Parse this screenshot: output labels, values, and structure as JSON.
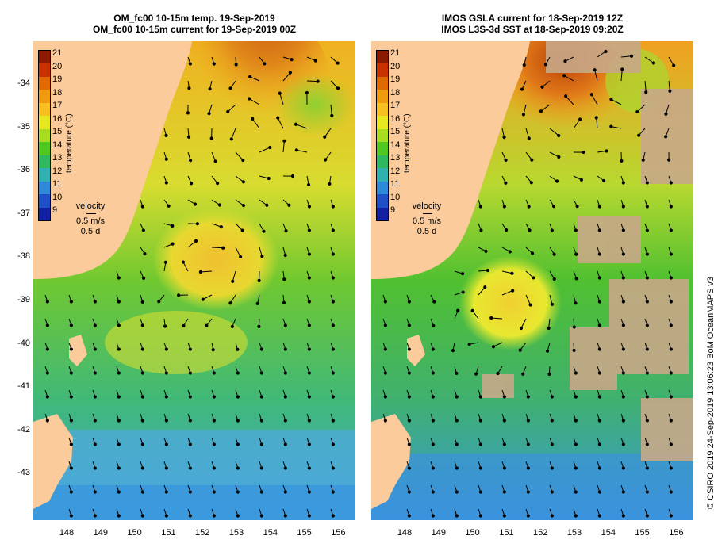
{
  "left_panel": {
    "title_line1": "OM_fc00 10-15m temp. 19-Sep-2019",
    "title_line2": "OM_fc00 10-15m current for 19-Sep-2019 00Z"
  },
  "right_panel": {
    "title_line1": "IMOS GSLA current for 18-Sep-2019 12Z",
    "title_line2": "IMOS L3S-3d SST at 18-Sep-2019 09:20Z"
  },
  "latitude_labels": [
    "-34",
    "-35",
    "-36",
    "-37",
    "-38",
    "-39",
    "-40",
    "-41",
    "-42",
    "-43"
  ],
  "longitude_labels": [
    "148",
    "149",
    "150",
    "151",
    "152",
    "153",
    "154",
    "155",
    "156"
  ],
  "colorbar": {
    "ticks": [
      "21",
      "20",
      "19",
      "18",
      "17",
      "16",
      "15",
      "14",
      "13",
      "12",
      "11",
      "10",
      "9"
    ],
    "title": "temperature (°C)",
    "colors": [
      "#8b1a00",
      "#c83200",
      "#e06a00",
      "#f09a10",
      "#f5c020",
      "#e8e820",
      "#a8dc20",
      "#50c820",
      "#30b860",
      "#30b0b0",
      "#3088d8",
      "#2050c8",
      "#1020a0"
    ]
  },
  "velocity_legend": {
    "title": "velocity",
    "speed": "0.5 m/s",
    "duration": "0.5 d"
  },
  "credit": "© CSIRO 2019   24-Sep-2019 13:06:23 BoM OceanMAPS v3",
  "colors": {
    "land": "#fccb9c",
    "cloud": "#c8a888"
  }
}
